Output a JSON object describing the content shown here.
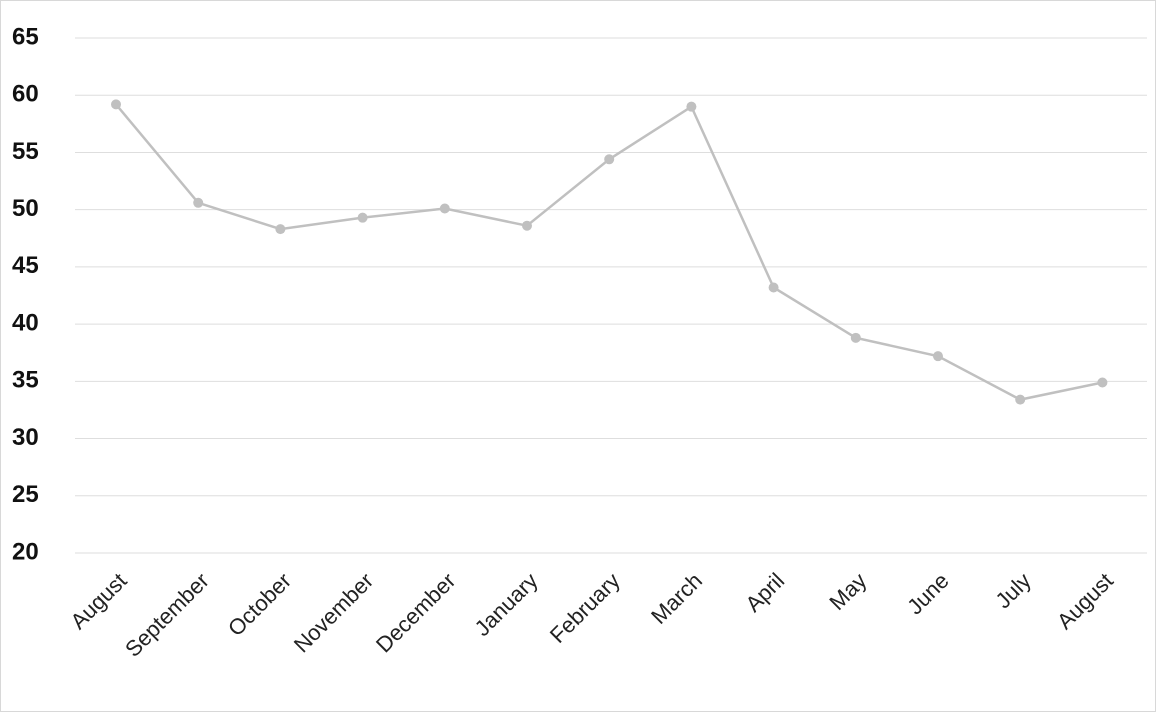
{
  "chart_data": {
    "type": "line",
    "categories": [
      "August",
      "September",
      "October",
      "November",
      "December",
      "January",
      "February",
      "March",
      "April",
      "May",
      "June",
      "July",
      "August"
    ],
    "series": [
      {
        "color": "#c0c0c0",
        "values": [
          59.2,
          50.6,
          48.3,
          49.3,
          50.1,
          48.6,
          54.4,
          59.0,
          43.2,
          38.8,
          37.2,
          33.4,
          34.9
        ]
      }
    ],
    "ylim": [
      20,
      65
    ],
    "yticks": [
      20,
      25,
      30,
      35,
      40,
      45,
      50,
      55,
      60,
      65
    ],
    "grid": true
  }
}
